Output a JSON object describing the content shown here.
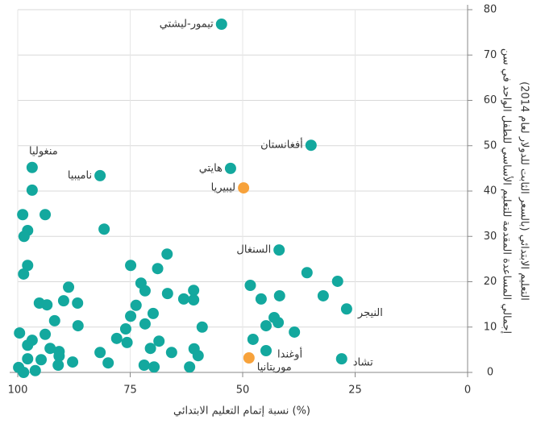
{
  "chart_data": {
    "type": "scatter",
    "xlabel": "نسبة إتمام التعليم الابتدائي (%)",
    "ylabel": [
      "إجمالي المساعدة المقدمة للتعليم الأساسي للطفل الواحد في سن",
      "التعليم الابتدائي (بالسعر الثابت للدولار لعام 2014)"
    ],
    "xlim": [
      100,
      0
    ],
    "xticks": [
      100,
      75,
      50,
      25,
      0
    ],
    "ylim": [
      0,
      80
    ],
    "yticks": [
      0,
      10,
      20,
      30,
      40,
      50,
      60,
      70,
      80
    ],
    "grid": true,
    "series": [
      {
        "color": "#13a89e",
        "x": [
          54.7,
          34.8,
          52.7,
          96.8,
          81.7,
          96.8,
          98.9,
          93.9,
          97.8,
          98.6,
          80.8,
          41.9,
          66.8,
          97.8,
          74.9,
          68.9,
          98.7,
          35.7,
          48.3,
          28.9,
          88.7,
          72.6,
          71.7,
          60.9,
          66.7,
          41.8,
          32.1,
          45.9,
          95.2,
          93.5,
          89.8,
          86.7,
          63.1,
          60.9,
          73.7,
          26.9,
          44.8,
          28,
          74.9,
          69.9,
          43,
          42.1,
          91.8,
          86.6,
          71.7,
          76,
          59,
          44.8,
          38.5,
          99.6,
          93.9,
          96.8,
          78,
          75.7,
          68.6,
          47.7,
          97.8,
          92.8,
          90.8,
          70.5,
          81.7,
          65.8,
          60.8,
          59.9,
          90.8,
          97.8,
          94.8,
          87.8,
          79.9,
          91,
          71.9,
          69.7,
          61.8,
          99.8,
          98.7,
          96.1
        ],
        "values": [
          76.8,
          50.1,
          45,
          45.2,
          43.4,
          40.2,
          34.8,
          34.8,
          31.3,
          30,
          31.6,
          27,
          26.1,
          23.6,
          23.6,
          22.9,
          21.7,
          22,
          19.2,
          20.1,
          18.8,
          19.7,
          18,
          18.1,
          17.4,
          16.9,
          16.9,
          16.2,
          15.3,
          14.9,
          15.8,
          15.3,
          16.2,
          16,
          14.8,
          14,
          4.8,
          3,
          12.4,
          13,
          12.1,
          11,
          11.4,
          10.3,
          10.7,
          9.6,
          10,
          10.3,
          8.9,
          8.7,
          8.4,
          7.1,
          7.5,
          6.6,
          6.9,
          7.3,
          6,
          5.3,
          4.6,
          5.3,
          4.4,
          4.4,
          5.2,
          3.7,
          3.6,
          3,
          2.8,
          2.3,
          2.1,
          1.6,
          1.6,
          1.2,
          1.2,
          1.1,
          0,
          0.4
        ],
        "labels": [
          "تيمور-ليشتي",
          "أفغانستان",
          "هايتي",
          "منغوليا",
          "ناميبيا",
          null,
          null,
          null,
          null,
          null,
          null,
          "السنغال",
          null,
          null,
          null,
          null,
          null,
          null,
          null,
          null,
          null,
          null,
          null,
          null,
          null,
          null,
          null,
          null,
          null,
          null,
          null,
          null,
          null,
          null,
          null,
          "النيجر",
          "أوغندا",
          "تشاد",
          null,
          null,
          null,
          null,
          null,
          null,
          null,
          null,
          null,
          null,
          null,
          null,
          null,
          null,
          null,
          null,
          null,
          null,
          null,
          null,
          null,
          null,
          null,
          null,
          null,
          null,
          null,
          null,
          null,
          null,
          null,
          null,
          null,
          null,
          null,
          null,
          null,
          null
        ]
      },
      {
        "color": "#f7a23b",
        "x": [
          49.8,
          48.6
        ],
        "values": [
          40.7,
          3.2
        ],
        "labels": [
          "ليبيريا",
          "موريتانيا"
        ]
      }
    ]
  }
}
